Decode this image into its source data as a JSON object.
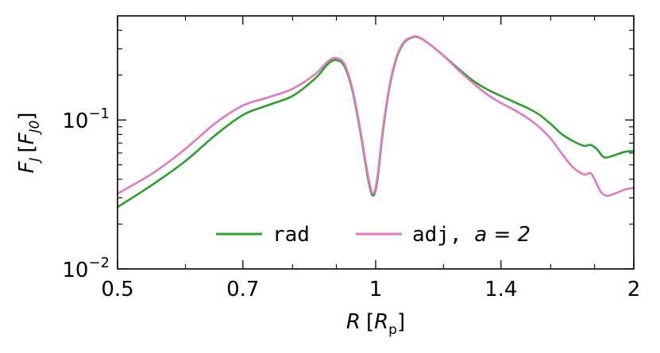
{
  "chart_data": {
    "type": "line",
    "xscale": "log",
    "yscale": "log",
    "xlim": [
      0.5,
      2.0
    ],
    "ylim": [
      0.01,
      0.5
    ],
    "x_ticks": [
      {
        "value": 0.5,
        "label": "0.5"
      },
      {
        "value": 0.7,
        "label": "0.7"
      },
      {
        "value": 1.0,
        "label": "1"
      },
      {
        "value": 1.4,
        "label": "1.4"
      },
      {
        "value": 2.0,
        "label": "2"
      }
    ],
    "y_ticks": [
      {
        "value": 0.01,
        "mantissa": "10",
        "exponent": "−2"
      },
      {
        "value": 0.1,
        "mantissa": "10",
        "exponent": "−1"
      }
    ],
    "xlabel": {
      "var": "R",
      "unit_open": "[",
      "unit_var": "R",
      "unit_sub": "p",
      "unit_close": "]"
    },
    "ylabel": {
      "var": "F",
      "var_sub": "J",
      "unit_open": "[",
      "unit_var": "F",
      "unit_sub": "J0",
      "unit_close": "]"
    },
    "legend": {
      "placement": "lower-center",
      "frame": false
    },
    "series": [
      {
        "name": "rad",
        "color": "#2ca02c",
        "points": [
          [
            0.5,
            0.026
          ],
          [
            0.55,
            0.037
          ],
          [
            0.6,
            0.053
          ],
          [
            0.65,
            0.079
          ],
          [
            0.7,
            0.108
          ],
          [
            0.75,
            0.126
          ],
          [
            0.8,
            0.145
          ],
          [
            0.85,
            0.19
          ],
          [
            0.88,
            0.238
          ],
          [
            0.9,
            0.252
          ],
          [
            0.92,
            0.228
          ],
          [
            0.94,
            0.155
          ],
          [
            0.96,
            0.082
          ],
          [
            0.98,
            0.04
          ],
          [
            0.993,
            0.031
          ],
          [
            1.005,
            0.04
          ],
          [
            1.02,
            0.085
          ],
          [
            1.04,
            0.176
          ],
          [
            1.06,
            0.27
          ],
          [
            1.08,
            0.332
          ],
          [
            1.1,
            0.356
          ],
          [
            1.12,
            0.36
          ],
          [
            1.15,
            0.33
          ],
          [
            1.2,
            0.27
          ],
          [
            1.25,
            0.22
          ],
          [
            1.3,
            0.183
          ],
          [
            1.35,
            0.16
          ],
          [
            1.4,
            0.145
          ],
          [
            1.45,
            0.132
          ],
          [
            1.5,
            0.121
          ],
          [
            1.55,
            0.109
          ],
          [
            1.6,
            0.094
          ],
          [
            1.65,
            0.08
          ],
          [
            1.7,
            0.072
          ],
          [
            1.75,
            0.067
          ],
          [
            1.78,
            0.068
          ],
          [
            1.81,
            0.064
          ],
          [
            1.84,
            0.057
          ],
          [
            1.86,
            0.056
          ],
          [
            1.9,
            0.058
          ],
          [
            1.95,
            0.061
          ],
          [
            2.0,
            0.062
          ]
        ]
      },
      {
        "name": "adj",
        "label_suffix_math": "a = 2",
        "color": "#e377c2",
        "points": [
          [
            0.5,
            0.032
          ],
          [
            0.55,
            0.044
          ],
          [
            0.6,
            0.064
          ],
          [
            0.65,
            0.095
          ],
          [
            0.7,
            0.125
          ],
          [
            0.75,
            0.142
          ],
          [
            0.8,
            0.162
          ],
          [
            0.85,
            0.203
          ],
          [
            0.88,
            0.248
          ],
          [
            0.9,
            0.26
          ],
          [
            0.92,
            0.236
          ],
          [
            0.94,
            0.16
          ],
          [
            0.96,
            0.085
          ],
          [
            0.98,
            0.042
          ],
          [
            0.993,
            0.032
          ],
          [
            1.005,
            0.042
          ],
          [
            1.02,
            0.088
          ],
          [
            1.04,
            0.18
          ],
          [
            1.06,
            0.275
          ],
          [
            1.08,
            0.336
          ],
          [
            1.1,
            0.358
          ],
          [
            1.12,
            0.362
          ],
          [
            1.15,
            0.33
          ],
          [
            1.2,
            0.27
          ],
          [
            1.25,
            0.215
          ],
          [
            1.3,
            0.176
          ],
          [
            1.35,
            0.148
          ],
          [
            1.4,
            0.13
          ],
          [
            1.45,
            0.117
          ],
          [
            1.5,
            0.104
          ],
          [
            1.55,
            0.09
          ],
          [
            1.6,
            0.075
          ],
          [
            1.65,
            0.059
          ],
          [
            1.7,
            0.048
          ],
          [
            1.75,
            0.043
          ],
          [
            1.78,
            0.044
          ],
          [
            1.8,
            0.04
          ],
          [
            1.83,
            0.033
          ],
          [
            1.86,
            0.031
          ],
          [
            1.9,
            0.032
          ],
          [
            1.95,
            0.034
          ],
          [
            2.0,
            0.035
          ]
        ]
      }
    ]
  }
}
